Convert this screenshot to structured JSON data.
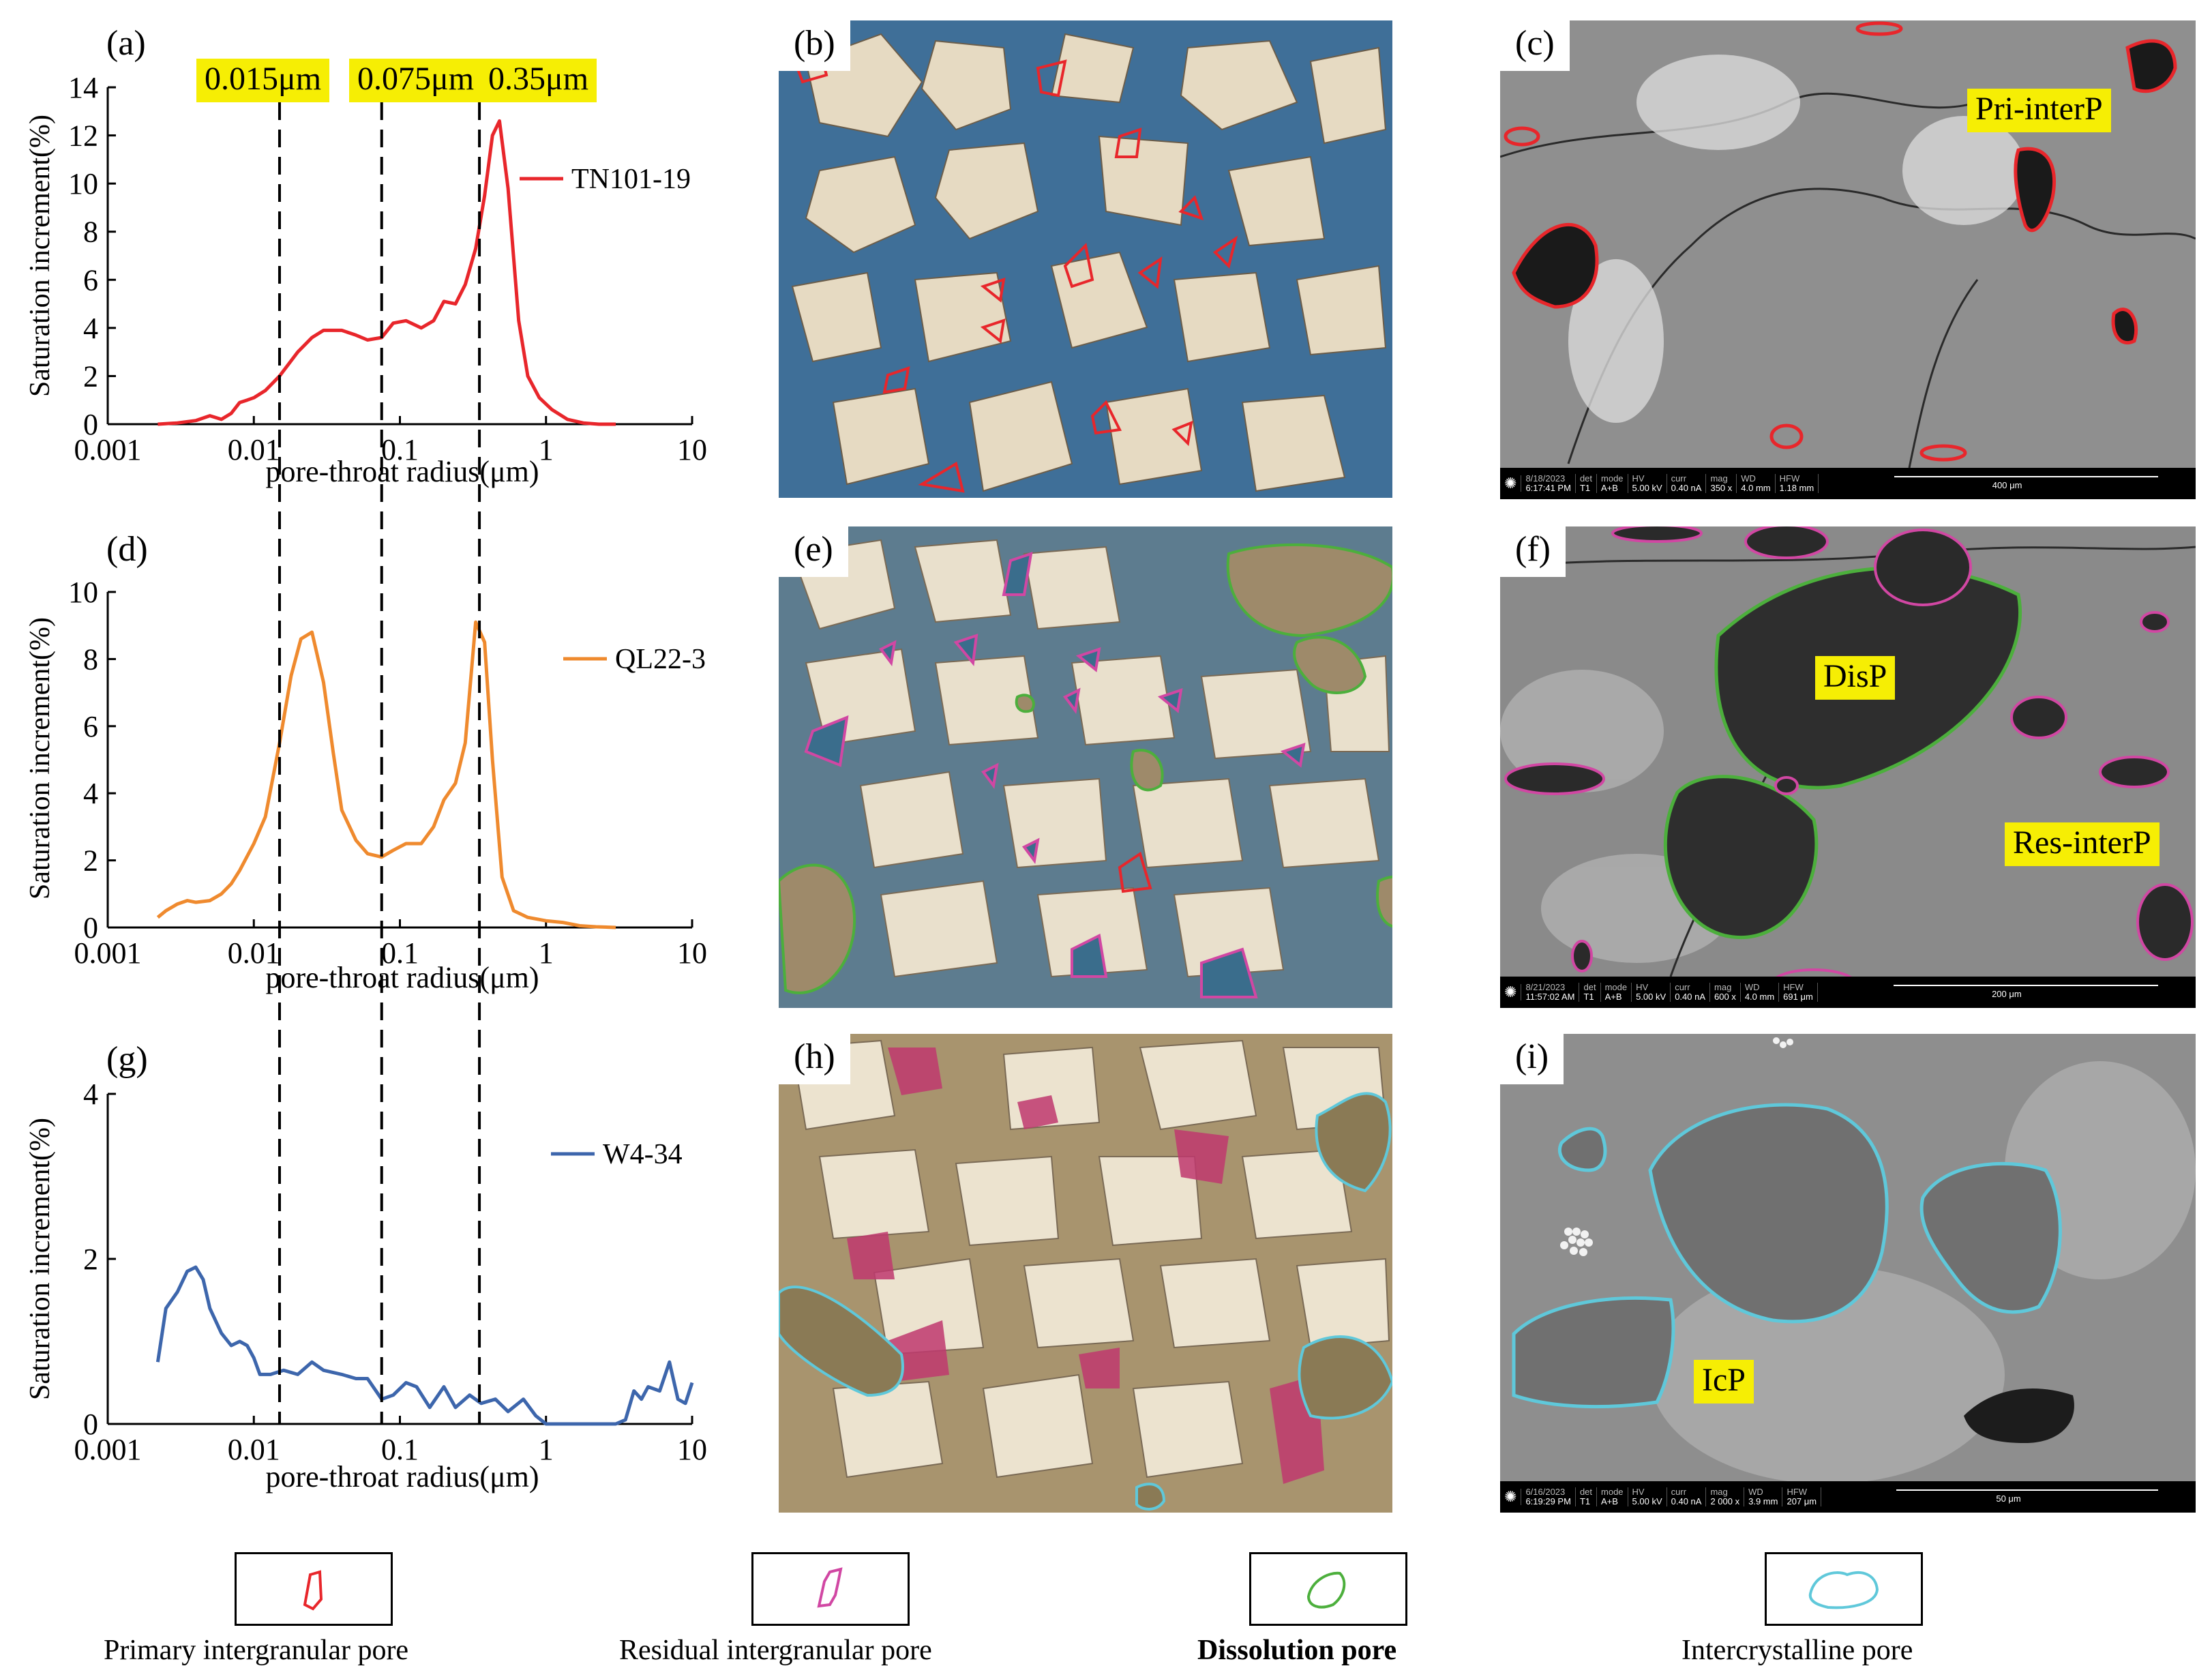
{
  "tags": [
    "0.015μm",
    "0.075μm",
    "0.35μm"
  ],
  "panel_labels": {
    "a": "(a)",
    "b": "(b)",
    "c": "(c)",
    "d": "(d)",
    "e": "(e)",
    "f": "(f)",
    "g": "(g)",
    "h": "(h)",
    "i": "(i)"
  },
  "chart_data": [
    {
      "type": "line",
      "panel": "(a)",
      "xlabel": "pore-throat radius(μm)",
      "ylabel": "Saturation increment(%)",
      "xscale": "log",
      "xlim": [
        0.001,
        10
      ],
      "ylim": [
        0,
        14
      ],
      "xticks": [
        "0.001",
        "0.01",
        "0.1",
        "1",
        "10"
      ],
      "yticks": [
        "0",
        "2",
        "4",
        "6",
        "8",
        "10",
        "12",
        "14"
      ],
      "reference_lines": [
        0.015,
        0.075,
        0.35
      ],
      "series": [
        {
          "name": "TN101-19",
          "color": "#e8262b",
          "x": [
            0.0022,
            0.003,
            0.004,
            0.005,
            0.006,
            0.007,
            0.008,
            0.009,
            0.01,
            0.012,
            0.015,
            0.02,
            0.025,
            0.03,
            0.04,
            0.05,
            0.06,
            0.075,
            0.09,
            0.11,
            0.14,
            0.17,
            0.2,
            0.24,
            0.28,
            0.33,
            0.38,
            0.43,
            0.48,
            0.55,
            0.65,
            0.75,
            0.9,
            1.1,
            1.4,
            1.8,
            2.3,
            3.0
          ],
          "y": [
            0,
            0.05,
            0.15,
            0.35,
            0.2,
            0.45,
            0.9,
            1.0,
            1.1,
            1.4,
            2.0,
            3.0,
            3.6,
            3.9,
            3.9,
            3.7,
            3.5,
            3.6,
            4.2,
            4.3,
            4.0,
            4.3,
            5.1,
            5.0,
            5.8,
            7.3,
            9.5,
            12.0,
            12.6,
            9.8,
            4.3,
            2.0,
            1.1,
            0.6,
            0.2,
            0.05,
            0,
            0
          ]
        }
      ]
    },
    {
      "type": "line",
      "panel": "(d)",
      "xlabel": "pore-throat radius(μm)",
      "ylabel": "Saturation increment(%)",
      "xscale": "log",
      "xlim": [
        0.001,
        10
      ],
      "ylim": [
        0,
        10
      ],
      "xticks": [
        "0.001",
        "0.01",
        "0.1",
        "1",
        "10"
      ],
      "yticks": [
        "0",
        "2",
        "4",
        "6",
        "8",
        "10"
      ],
      "series": [
        {
          "name": "QL22-3",
          "color": "#ef8a2e",
          "x": [
            0.0022,
            0.0025,
            0.003,
            0.0035,
            0.004,
            0.005,
            0.006,
            0.007,
            0.008,
            0.01,
            0.012,
            0.015,
            0.018,
            0.021,
            0.025,
            0.03,
            0.035,
            0.04,
            0.05,
            0.06,
            0.075,
            0.09,
            0.11,
            0.14,
            0.17,
            0.2,
            0.24,
            0.28,
            0.33,
            0.38,
            0.43,
            0.5,
            0.6,
            0.75,
            1.0,
            1.3,
            1.7,
            2.2,
            3.0
          ],
          "y": [
            0.3,
            0.5,
            0.7,
            0.8,
            0.75,
            0.8,
            1.0,
            1.3,
            1.7,
            2.5,
            3.3,
            5.5,
            7.5,
            8.6,
            8.8,
            7.3,
            5.2,
            3.5,
            2.6,
            2.2,
            2.1,
            2.3,
            2.5,
            2.5,
            3.0,
            3.8,
            4.3,
            5.5,
            9.1,
            8.5,
            5.0,
            1.5,
            0.5,
            0.3,
            0.2,
            0.15,
            0.05,
            0.02,
            0
          ]
        }
      ]
    },
    {
      "type": "line",
      "panel": "(g)",
      "xlabel": "pore-throat radius(μm)",
      "ylabel": "Saturation increment(%)",
      "xscale": "log",
      "xlim": [
        0.001,
        10
      ],
      "ylim": [
        0,
        4
      ],
      "xticks": [
        "0.001",
        "0.01",
        "0.1",
        "1",
        "10"
      ],
      "yticks": [
        "0",
        "2",
        "4"
      ],
      "series": [
        {
          "name": "W4-34",
          "color": "#3d66ac",
          "x": [
            0.0022,
            0.0025,
            0.003,
            0.0035,
            0.004,
            0.0045,
            0.005,
            0.006,
            0.007,
            0.008,
            0.009,
            0.01,
            0.011,
            0.013,
            0.016,
            0.02,
            0.025,
            0.03,
            0.04,
            0.05,
            0.06,
            0.075,
            0.09,
            0.11,
            0.13,
            0.16,
            0.2,
            0.24,
            0.3,
            0.36,
            0.45,
            0.55,
            0.7,
            0.85,
            1.0,
            1.3,
            1.8,
            2.5,
            3.0,
            3.5,
            4.0,
            4.5,
            5.0,
            6.0,
            7.0,
            8.0,
            9.0,
            10.0
          ],
          "y": [
            0.75,
            1.4,
            1.6,
            1.85,
            1.9,
            1.75,
            1.4,
            1.1,
            0.95,
            1.0,
            0.95,
            0.8,
            0.6,
            0.6,
            0.65,
            0.6,
            0.75,
            0.65,
            0.6,
            0.55,
            0.55,
            0.3,
            0.35,
            0.5,
            0.45,
            0.2,
            0.45,
            0.2,
            0.35,
            0.25,
            0.3,
            0.15,
            0.3,
            0.1,
            0,
            0,
            0,
            0,
            0,
            0.05,
            0.4,
            0.3,
            0.45,
            0.4,
            0.75,
            0.3,
            0.25,
            0.5
          ]
        }
      ]
    }
  ],
  "panels": {
    "c": {
      "label": "Pri-interP",
      "sem": {
        "date": "8/18/2023",
        "time": "6:17:41 PM",
        "det": "T1",
        "mode": "A+B",
        "hv": "5.00 kV",
        "curr": "0.40 nA",
        "mag": "350 x",
        "wd": "4.0 mm",
        "hfw": "1.18 mm",
        "scale": "400 μm"
      }
    },
    "f": {
      "labels": [
        "DisP",
        "Res-interP"
      ],
      "sem": {
        "date": "8/21/2023",
        "time": "11:57:02 AM",
        "det": "T1",
        "mode": "A+B",
        "hv": "5.00 kV",
        "curr": "0.40 nA",
        "mag": "600 x",
        "wd": "4.0 mm",
        "hfw": "691 μm",
        "scale": "200 μm"
      }
    },
    "i": {
      "label": "IcP",
      "sem": {
        "date": "6/16/2023",
        "time": "6:19:29 PM",
        "det": "T1",
        "mode": "A+B",
        "hv": "5.00 kV",
        "curr": "0.40 nA",
        "mag": "2 000 x",
        "wd": "3.9 mm",
        "hfw": "207 μm",
        "scale": "50 μm"
      }
    }
  },
  "sem_headers": {
    "det": "det",
    "mode": "mode",
    "hv": "HV",
    "curr": "curr",
    "mag": "mag",
    "wd": "WD",
    "hfw": "HFW"
  },
  "legend": [
    {
      "label": "Primary intergranular pore",
      "color": "#e8262b",
      "bold": false
    },
    {
      "label": "Residual intergranular pore",
      "color": "#d147a3",
      "bold": false
    },
    {
      "label": "Dissolution pore",
      "color": "#4caf3c",
      "bold": true
    },
    {
      "label": "Intercrystalline pore",
      "color": "#5fc8da",
      "bold": false
    }
  ],
  "colors": {
    "red": "#e8262b",
    "magenta": "#d147a3",
    "green": "#4caf3c",
    "cyan": "#5fc8da",
    "highlight": "#f6ee04"
  }
}
